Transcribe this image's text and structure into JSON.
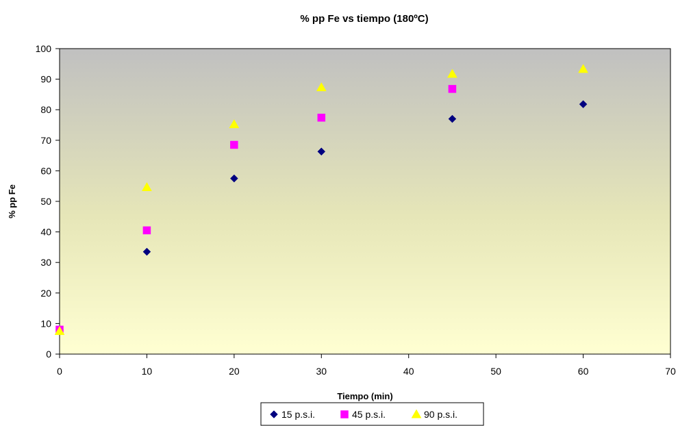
{
  "chart_data": {
    "type": "scatter",
    "title": "% pp Fe vs tiempo (180ºC)",
    "xlabel": "Tiempo (min)",
    "ylabel": "% pp Fe",
    "xlim": [
      0,
      70
    ],
    "ylim": [
      0,
      100
    ],
    "xticks": [
      0,
      10,
      20,
      30,
      40,
      50,
      60,
      70
    ],
    "yticks": [
      0,
      10,
      20,
      30,
      40,
      50,
      60,
      70,
      80,
      90,
      100
    ],
    "grid": false,
    "legend_position": "bottom",
    "plot_background": "gradient gray-top to pale-yellow-bottom",
    "series": [
      {
        "name": "15 p.s.i.",
        "marker": "diamond",
        "color": "#000080",
        "x": [
          0,
          10,
          20,
          30,
          45,
          60
        ],
        "y": [
          8,
          33.5,
          57.5,
          66.3,
          77,
          81.8
        ]
      },
      {
        "name": "45 p.s.i.",
        "marker": "square",
        "color": "#FF00FF",
        "x": [
          0,
          10,
          20,
          30,
          45
        ],
        "y": [
          8,
          40.5,
          68.5,
          77.4,
          86.8
        ]
      },
      {
        "name": "90 p.s.i.",
        "marker": "triangle",
        "color": "#FFFF00",
        "x": [
          0,
          10,
          20,
          30,
          45,
          60
        ],
        "y": [
          7.5,
          54.6,
          75.2,
          87.3,
          91.7,
          93.3
        ]
      }
    ]
  }
}
